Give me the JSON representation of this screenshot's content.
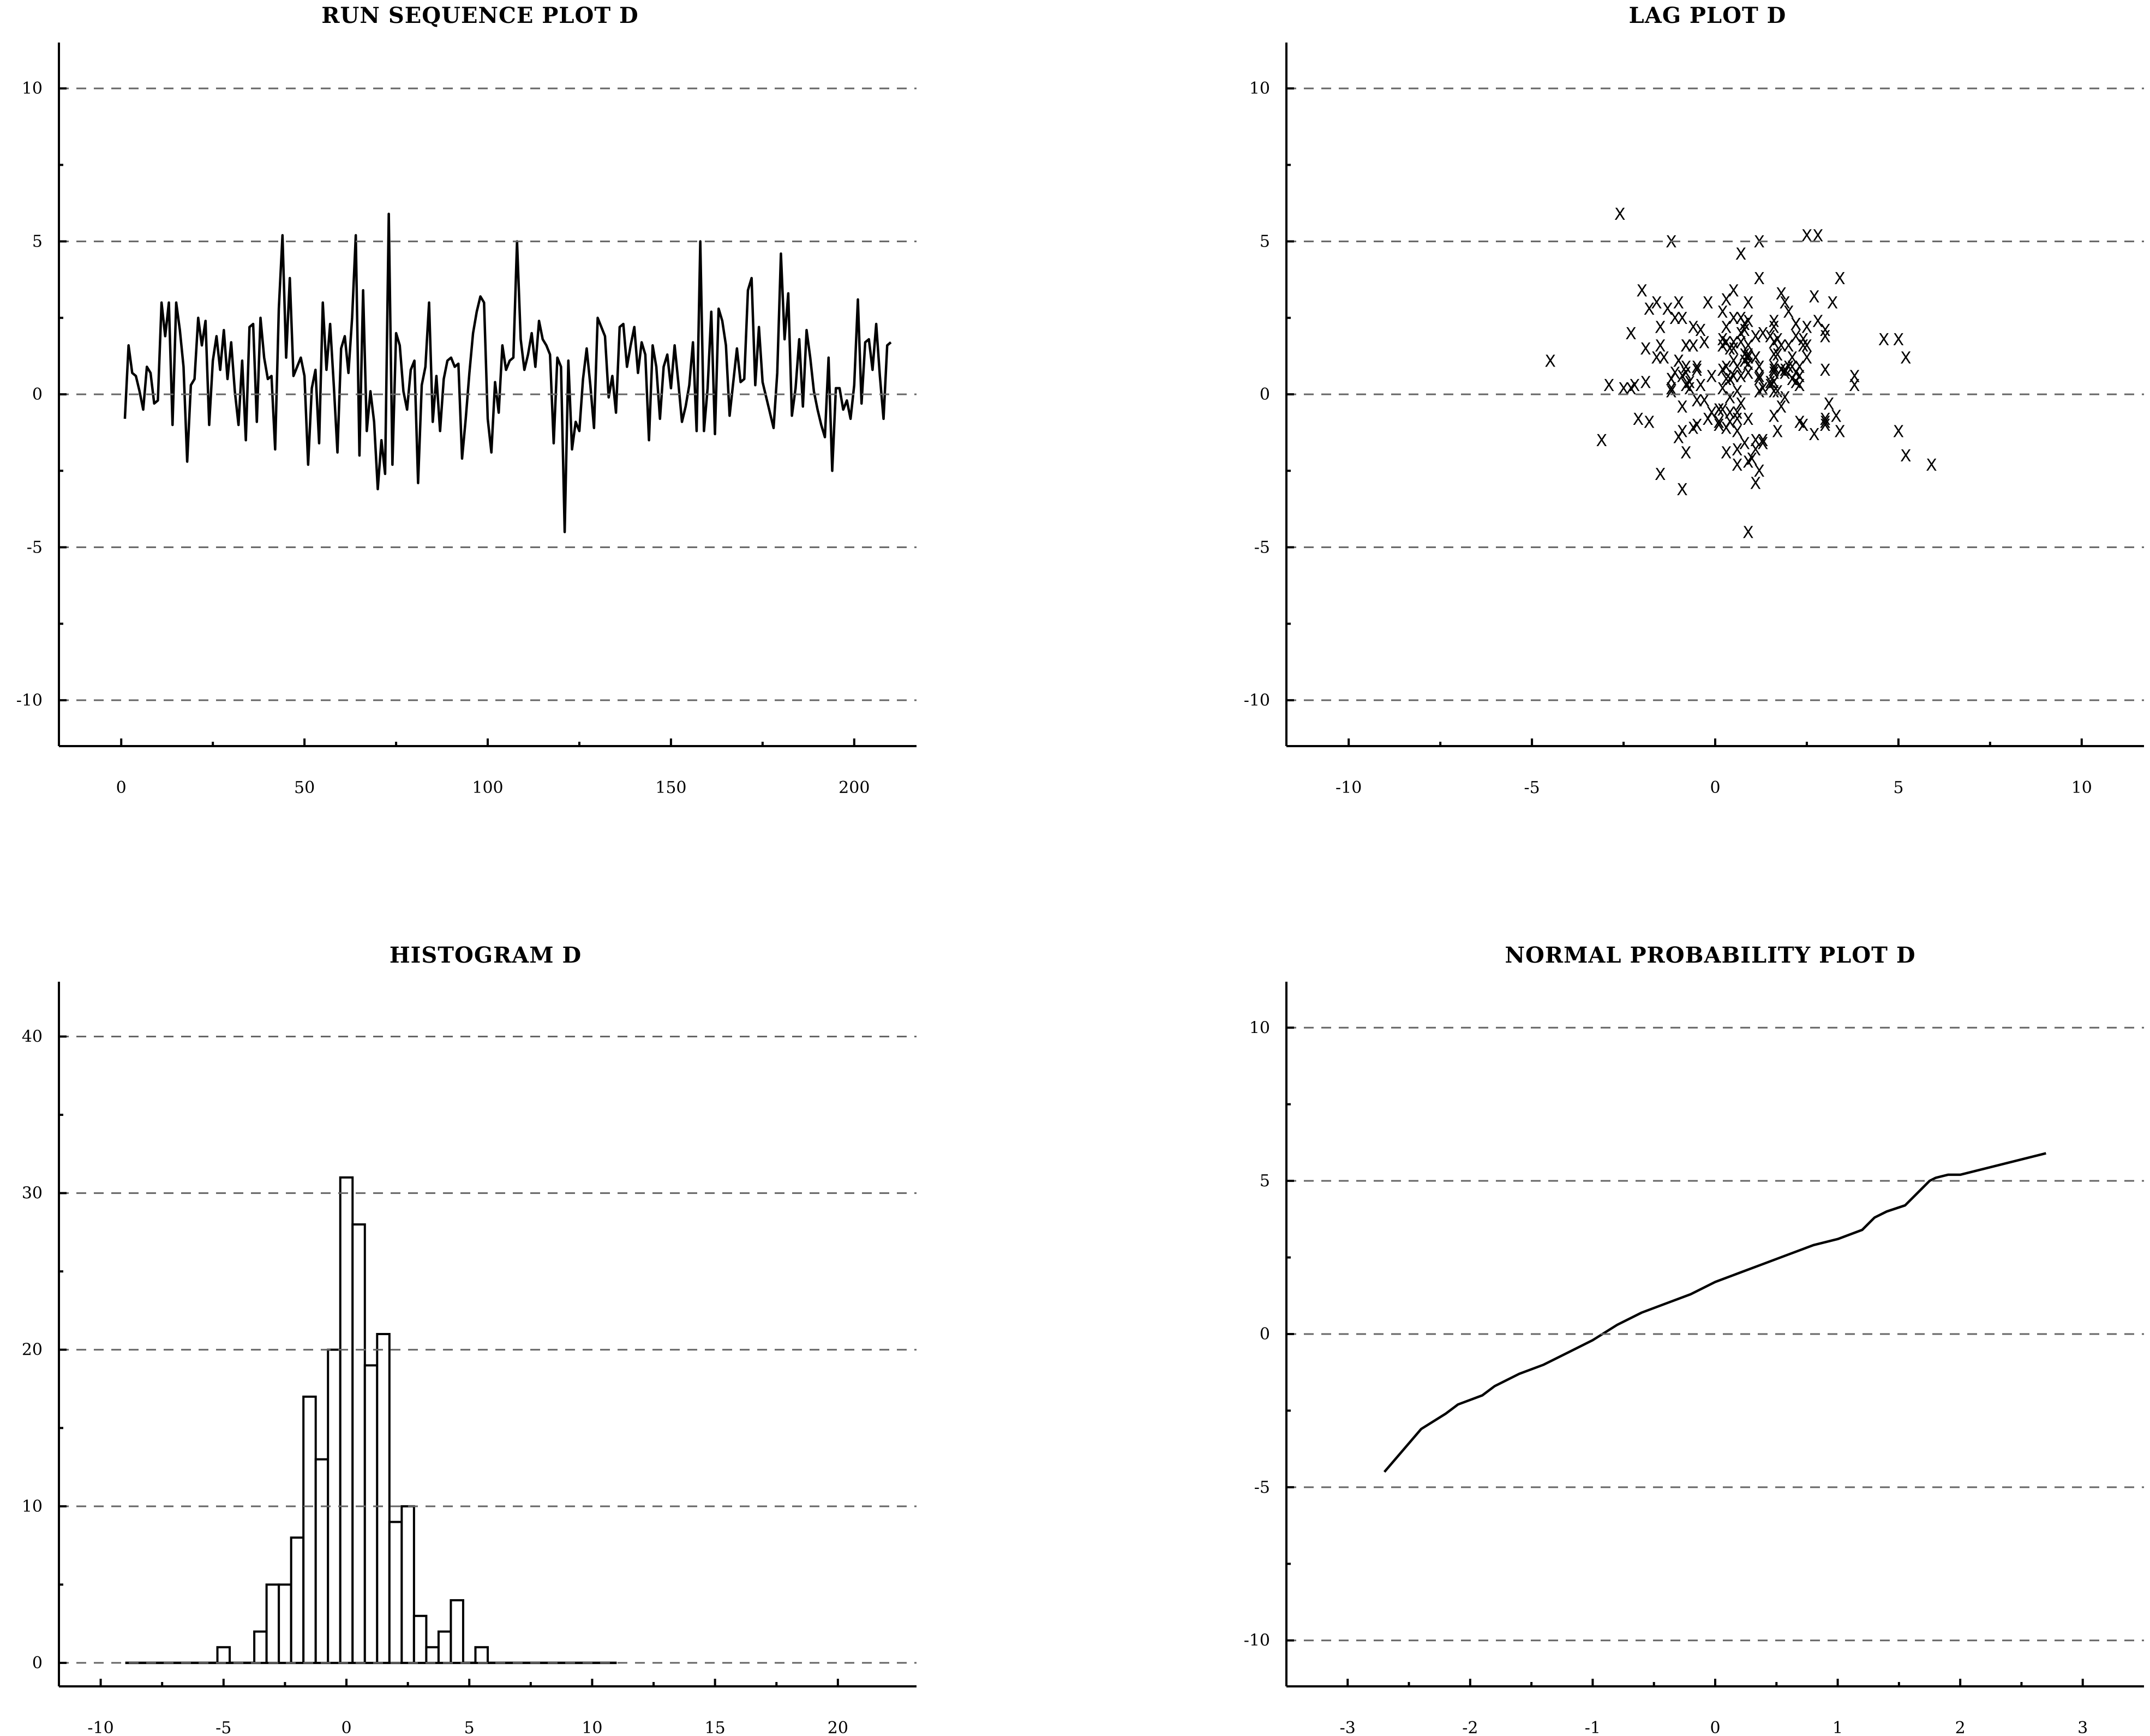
{
  "chart_data": [
    {
      "id": "run",
      "type": "line",
      "title": "RUN SEQUENCE PLOT D",
      "xlim": [
        -17,
        217
      ],
      "ylim": [
        -11.5,
        11.5
      ],
      "xticks": [
        0,
        50,
        100,
        150,
        200
      ],
      "xtick_labels": [
        "0",
        "50",
        "100",
        "150",
        "200"
      ],
      "xminor": [
        25,
        75,
        125,
        175
      ],
      "yticks": [
        -10,
        -5,
        0,
        5,
        10
      ],
      "ytick_labels": [
        "-10",
        "-5",
        "0",
        "5",
        "10"
      ],
      "yminor": [
        -7.5,
        -2.5,
        2.5,
        7.5
      ],
      "grid": true,
      "series": [
        {
          "x_start": 1,
          "values": [
            -0.8,
            1.6,
            0.7,
            0.6,
            0.1,
            -0.5,
            0.9,
            0.7,
            -0.3,
            -0.2,
            3.0,
            1.9,
            3.0,
            -1.0,
            3.0,
            2.1,
            0.9,
            -2.2,
            0.3,
            0.5,
            2.5,
            1.6,
            2.4,
            -1.0,
            1.1,
            1.9,
            0.8,
            2.1,
            0.5,
            1.7,
            0.1,
            -1.0,
            1.1,
            -1.5,
            2.2,
            2.3,
            -0.9,
            2.5,
            1.2,
            0.5,
            0.6,
            -1.8,
            2.8,
            5.2,
            1.2,
            3.8,
            0.6,
            0.9,
            1.2,
            0.6,
            -2.3,
            0.2,
            0.8,
            -1.6,
            3.0,
            0.8,
            2.3,
            0.3,
            -1.9,
            1.5,
            1.9,
            0.7,
            2.5,
            5.2,
            -2.0,
            3.4,
            -1.2,
            0.1,
            -0.9,
            -3.1,
            -1.5,
            -2.6,
            5.9,
            -2.3,
            2.0,
            1.6,
            0.1,
            -0.5,
            0.8,
            1.1,
            -2.9,
            0.3,
            0.9,
            3.0,
            -0.9,
            0.6,
            -1.2,
            0.5,
            1.1,
            1.2,
            0.9,
            1.0,
            -2.1,
            -0.8,
            0.7,
            2.0,
            2.7,
            3.2,
            3.0,
            -0.8,
            -1.9,
            0.4,
            -0.6,
            1.6,
            0.8,
            1.1,
            1.2,
            5.0,
            1.8,
            0.8,
            1.3,
            2.0,
            0.9,
            2.4,
            1.8,
            1.6,
            1.3,
            -1.6,
            1.2,
            0.9,
            -4.5,
            1.1,
            -1.8,
            -0.9,
            -1.2,
            0.5,
            1.5,
            0.3,
            -1.1,
            2.5,
            2.2,
            1.9,
            -0.1,
            0.6,
            -0.6,
            2.2,
            2.3,
            0.9,
            1.6,
            2.2,
            0.7,
            1.7,
            1.3,
            -1.5,
            1.6,
            0.9,
            -0.8,
            0.9,
            1.3,
            0.2,
            1.6,
            0.4,
            -0.9,
            -0.4,
            0.3,
            1.7,
            -1.2,
            5.0,
            -1.2,
            0.2,
            2.7,
            -1.3,
            2.8,
            2.4,
            1.6,
            -0.7,
            0.4,
            1.5,
            0.4,
            0.5,
            3.4,
            3.8,
            0.3,
            2.2,
            0.4,
            -0.1,
            -0.6,
            -1.1,
            0.7,
            4.6,
            1.8,
            3.3,
            -0.7,
            0.2,
            1.8,
            -0.4,
            2.1,
            1.2,
            0.1,
            -0.5,
            -1.0,
            -1.4,
            1.2,
            -2.5,
            0.2,
            0.2,
            -0.5,
            -0.2,
            -0.8,
            0.3,
            3.1,
            -0.3,
            1.7,
            1.8,
            0.8,
            2.3,
            0.6,
            -0.8,
            1.6,
            1.7
          ]
        }
      ]
    },
    {
      "id": "lag",
      "type": "scatter",
      "title": "LAG PLOT D",
      "xlim": [
        -11.7,
        11.7
      ],
      "ylim": [
        -11.5,
        11.5
      ],
      "xticks": [
        -10,
        -5,
        0,
        5,
        10
      ],
      "xtick_labels": [
        "-10",
        "-5",
        "0",
        "5",
        "10"
      ],
      "xminor": [
        -7.5,
        -2.5,
        2.5,
        7.5
      ],
      "yticks": [
        -10,
        -5,
        0,
        5,
        10
      ],
      "ytick_labels": [
        "-10",
        "-5",
        "0",
        "5",
        "10"
      ],
      "yminor": [
        -7.5,
        -2.5,
        2.5,
        7.5
      ],
      "grid": true,
      "marker": "X"
    },
    {
      "id": "hist",
      "type": "bar",
      "title": "HISTOGRAM D",
      "xlim": [
        -11.7,
        23.2
      ],
      "ylim": [
        -1.5,
        43.5
      ],
      "xticks": [
        -10,
        -5,
        0,
        5,
        10,
        15,
        20
      ],
      "xtick_labels": [
        "-10",
        "-5",
        "0",
        "5",
        "10",
        "15",
        "20"
      ],
      "xminor": [
        -7.5,
        -2.5,
        2.5,
        7.5,
        12.5,
        17.5
      ],
      "yticks": [
        0,
        10,
        20,
        30,
        40
      ],
      "ytick_labels": [
        "0",
        "10",
        "20",
        "30",
        "40"
      ],
      "yminor": [
        5,
        15,
        25,
        35
      ],
      "grid": true,
      "bin_width": 0.5,
      "range": [
        -9.0,
        11.0
      ],
      "bins": [
        {
          "x": -5.0,
          "count": 1
        },
        {
          "x": -3.5,
          "count": 2
        },
        {
          "x": -3.0,
          "count": 5
        },
        {
          "x": -2.5,
          "count": 5
        },
        {
          "x": -2.0,
          "count": 8
        },
        {
          "x": -1.5,
          "count": 17
        },
        {
          "x": -1.0,
          "count": 13
        },
        {
          "x": -0.5,
          "count": 20
        },
        {
          "x": 0.0,
          "count": 31
        },
        {
          "x": 0.5,
          "count": 28
        },
        {
          "x": 1.0,
          "count": 19
        },
        {
          "x": 1.5,
          "count": 21
        },
        {
          "x": 2.0,
          "count": 9
        },
        {
          "x": 2.5,
          "count": 10
        },
        {
          "x": 3.0,
          "count": 3
        },
        {
          "x": 3.5,
          "count": 1
        },
        {
          "x": 4.0,
          "count": 2
        },
        {
          "x": 4.5,
          "count": 4
        },
        {
          "x": 5.5,
          "count": 1
        }
      ]
    },
    {
      "id": "nprob",
      "type": "line",
      "title": "NORMAL PROBABILITY PLOT D",
      "xlim": [
        -3.5,
        3.5
      ],
      "ylim": [
        -11.5,
        11.5
      ],
      "xticks": [
        -3,
        -2,
        -1,
        0,
        1,
        2,
        3
      ],
      "xtick_labels": [
        "-3",
        "-2",
        "-1",
        "0",
        "1",
        "2",
        "3"
      ],
      "xminor": [
        -2.5,
        -1.5,
        -0.5,
        0.5,
        1.5,
        2.5
      ],
      "yticks": [
        -10,
        -5,
        0,
        5,
        10
      ],
      "ytick_labels": [
        "-10",
        "-5",
        "0",
        "5",
        "10"
      ],
      "yminor": [
        -7.5,
        -2.5,
        2.5,
        7.5
      ],
      "grid": true,
      "series": [
        {
          "x": [
            -2.7,
            -2.4,
            -2.2,
            -2.1,
            -1.9,
            -1.8,
            -1.6,
            -1.4,
            -1.2,
            -1.0,
            -0.8,
            -0.6,
            -0.4,
            -0.2,
            0.0,
            0.2,
            0.4,
            0.6,
            0.8,
            1.0,
            1.2,
            1.3,
            1.4,
            1.55,
            1.65,
            1.75,
            1.8,
            1.9,
            2.0,
            2.2,
            2.4,
            2.7
          ],
          "y": [
            -4.5,
            -3.1,
            -2.6,
            -2.3,
            -2.0,
            -1.7,
            -1.3,
            -1.0,
            -0.6,
            -0.2,
            0.3,
            0.7,
            1.0,
            1.3,
            1.7,
            2.0,
            2.3,
            2.6,
            2.9,
            3.1,
            3.4,
            3.8,
            4.0,
            4.2,
            4.6,
            5.0,
            5.1,
            5.2,
            5.2,
            5.4,
            5.6,
            5.9
          ]
        }
      ]
    }
  ]
}
